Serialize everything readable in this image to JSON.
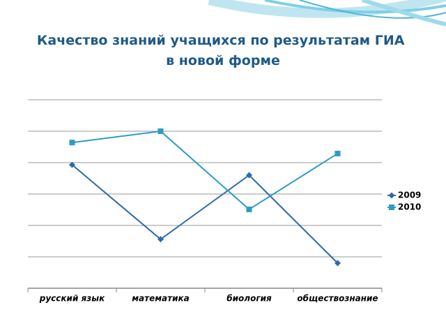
{
  "chart_data": {
    "type": "line",
    "title": "Качество знаний учащихся по результатам ГИА в новой форме",
    "categories": [
      "русский язык",
      "математика",
      "биология",
      "обществознание"
    ],
    "series": [
      {
        "name": "2009",
        "color": "#2f6aa8",
        "marker": "diamond",
        "values": [
          3.93,
          1.56,
          3.6,
          0.8
        ]
      },
      {
        "name": "2010",
        "color": "#2b9cc6",
        "marker": "square",
        "values": [
          4.64,
          5.0,
          2.51,
          4.29
        ]
      }
    ],
    "ylim": [
      0,
      6
    ],
    "yticks": [
      0,
      1,
      2,
      3,
      4,
      5,
      6
    ],
    "ytick_labels": false,
    "grid": true,
    "legend": "right"
  }
}
